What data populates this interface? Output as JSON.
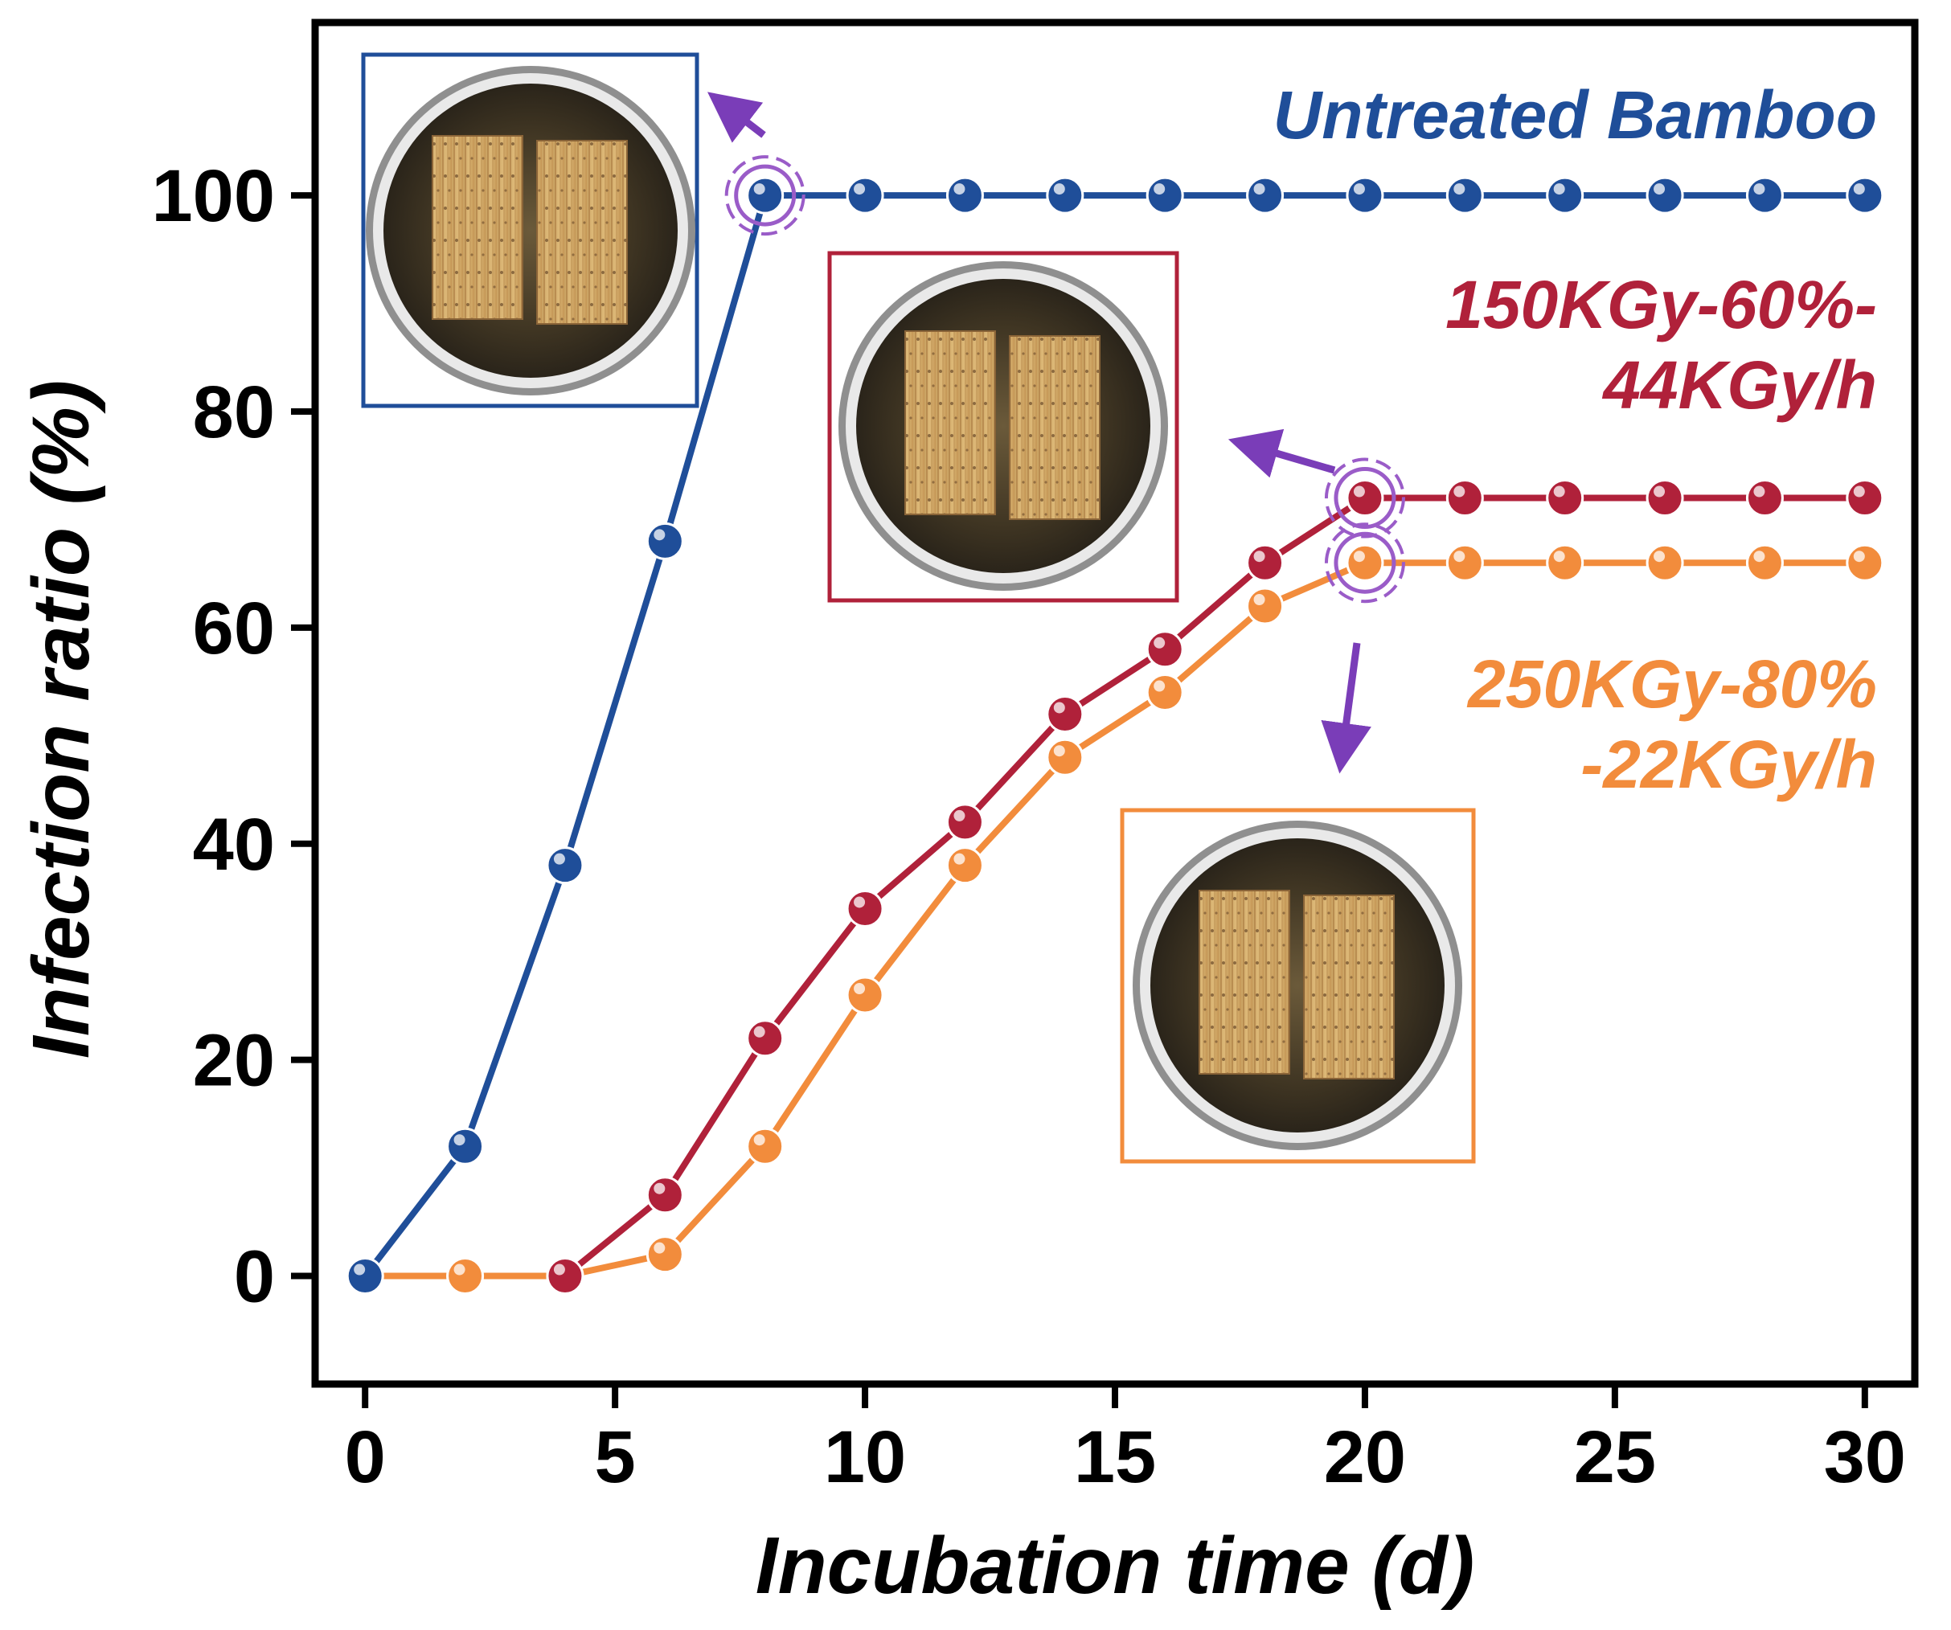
{
  "chart_data": {
    "type": "line",
    "title": "",
    "xlabel": "Incubation time (d)",
    "ylabel": "Infection ratio (%)",
    "xlim": [
      -1,
      31
    ],
    "ylim": [
      -10,
      116
    ],
    "xticks": [
      0,
      5,
      10,
      15,
      20,
      25,
      30
    ],
    "yticks": [
      0,
      20,
      40,
      60,
      80,
      100
    ],
    "grid": false,
    "series": [
      {
        "name": "Untreated Bamboo",
        "label_lines": [
          "Untreated Bamboo"
        ],
        "color": "#1F4E99",
        "x": [
          0,
          2,
          4,
          6,
          8,
          10,
          12,
          14,
          16,
          18,
          20,
          22,
          24,
          26,
          28,
          30
        ],
        "values": [
          0,
          12,
          38,
          68,
          100,
          100,
          100,
          100,
          100,
          100,
          100,
          100,
          100,
          100,
          100,
          100
        ]
      },
      {
        "name": "150KGy-60%-44KGy/h",
        "label_lines": [
          "150KGy-60%-",
          "44KGy/h"
        ],
        "color": "#B0213A",
        "x": [
          4,
          6,
          8,
          10,
          12,
          14,
          16,
          18,
          20,
          22,
          24,
          26,
          28,
          30
        ],
        "values": [
          0,
          7.5,
          22,
          34,
          42,
          52,
          58,
          66,
          72,
          72,
          72,
          72,
          72,
          72
        ]
      },
      {
        "name": "250KGy-80%-22KGy/h",
        "label_lines": [
          "250KGy-80%",
          "-22KGy/h"
        ],
        "color": "#F28C3C",
        "x": [
          0,
          2,
          4,
          6,
          8,
          10,
          12,
          14,
          16,
          18,
          20,
          22,
          24,
          26,
          28,
          30
        ],
        "values": [
          0,
          0,
          0,
          2,
          12,
          26,
          38,
          48,
          54,
          62,
          66,
          66,
          66,
          66,
          66,
          66
        ]
      }
    ],
    "annotations": [
      {
        "type": "sample-photo",
        "series": "Untreated Bamboo",
        "at": {
          "x": 8,
          "y": 100
        },
        "frame_color": "#1F4E99"
      },
      {
        "type": "sample-photo",
        "series": "150KGy-60%-44KGy/h",
        "at": {
          "x": 20,
          "y": 72
        },
        "frame_color": "#B0213A"
      },
      {
        "type": "sample-photo",
        "series": "250KGy-80%-22KGy/h",
        "at": {
          "x": 20,
          "y": 66
        },
        "frame_color": "#F28C3C"
      }
    ]
  },
  "style": {
    "arrow_color": "#7A3DB8",
    "highlight_color": "#9A5CC8"
  }
}
